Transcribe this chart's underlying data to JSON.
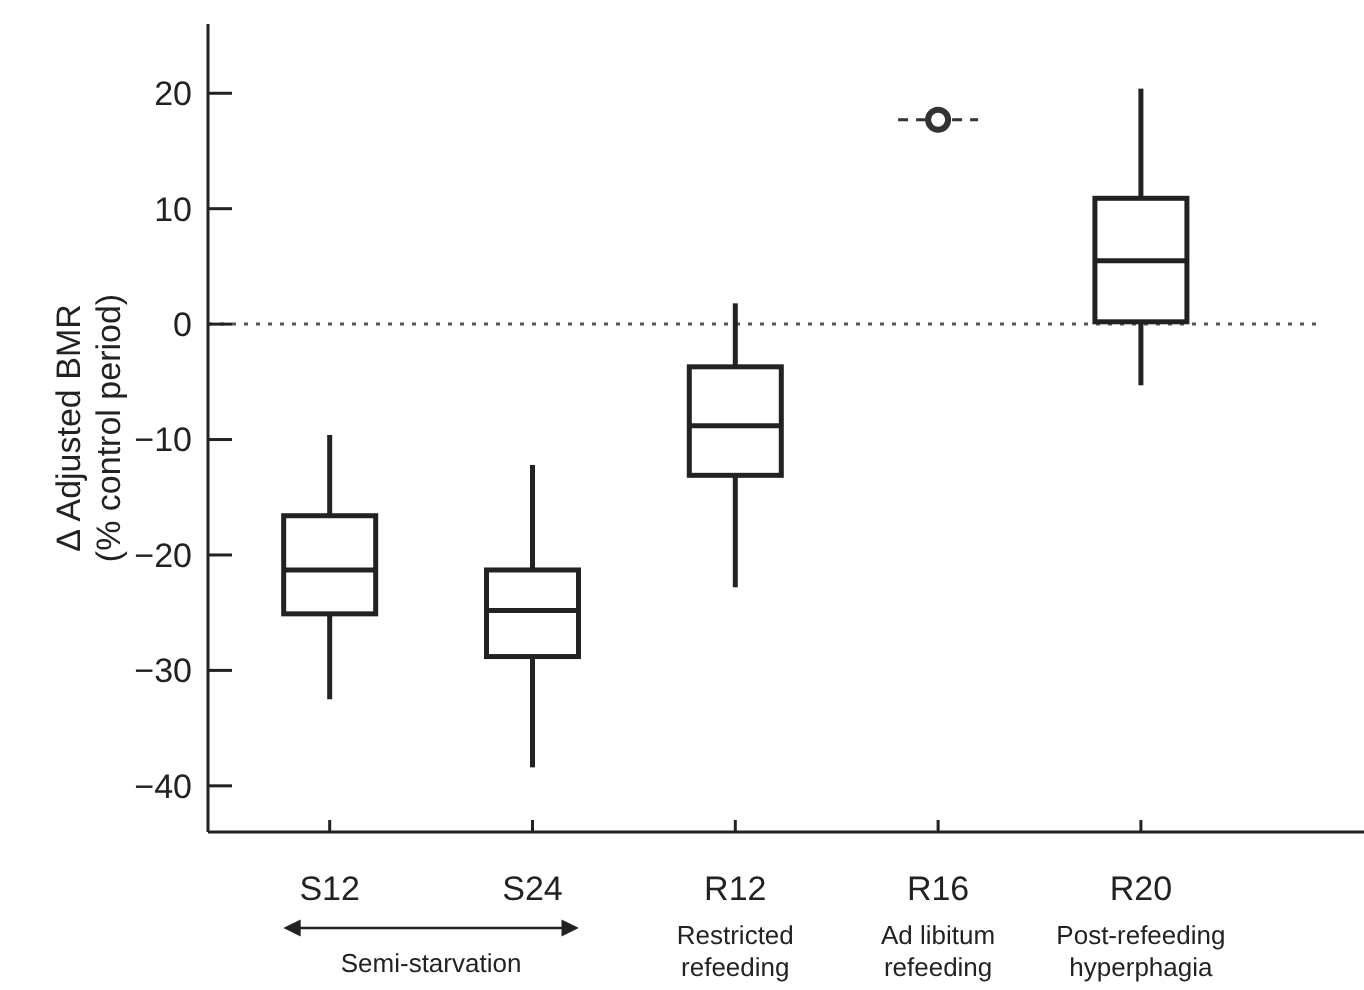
{
  "chart_data": {
    "type": "box",
    "ylabel": "Δ Adjusted BMR\n(% control period)",
    "categories": [
      "S12",
      "S24",
      "R12",
      "R16",
      "R20"
    ],
    "boxes": [
      {
        "low": -32.5,
        "q1": -25.1,
        "median": -21.3,
        "q3": -16.6,
        "high": -9.6
      },
      {
        "low": -38.4,
        "q1": -28.8,
        "median": -24.8,
        "q3": -21.3,
        "high": -12.2
      },
      {
        "low": -22.8,
        "q1": -13.1,
        "median": -8.8,
        "q3": -3.7,
        "high": 1.8
      },
      null,
      {
        "low": -5.3,
        "q1": 0.2,
        "median": 5.5,
        "q3": 10.9,
        "high": 20.4
      }
    ],
    "series": [
      {
        "type": "scatter",
        "x": [
          "R16"
        ],
        "values": [
          17.7
        ],
        "color": "#333333",
        "marker": "circle"
      }
    ],
    "ylim": [
      -44,
      26
    ],
    "yticks": [
      {
        "value": -40,
        "label": "−40"
      },
      {
        "value": -30,
        "label": "−30"
      },
      {
        "value": -20,
        "label": "−20"
      },
      {
        "value": -10,
        "label": "−10"
      },
      0,
      10,
      20
    ],
    "ref_lines": [
      {
        "axis": "y",
        "value": 0,
        "line_style": "dotted",
        "color": "#555555"
      }
    ],
    "annotations": [
      "Semi-starvation",
      "Restricted\nrefeeding",
      "Ad libitum\nrefeeding",
      "Post-refeeding\nhyperphagia"
    ],
    "grid": false
  }
}
